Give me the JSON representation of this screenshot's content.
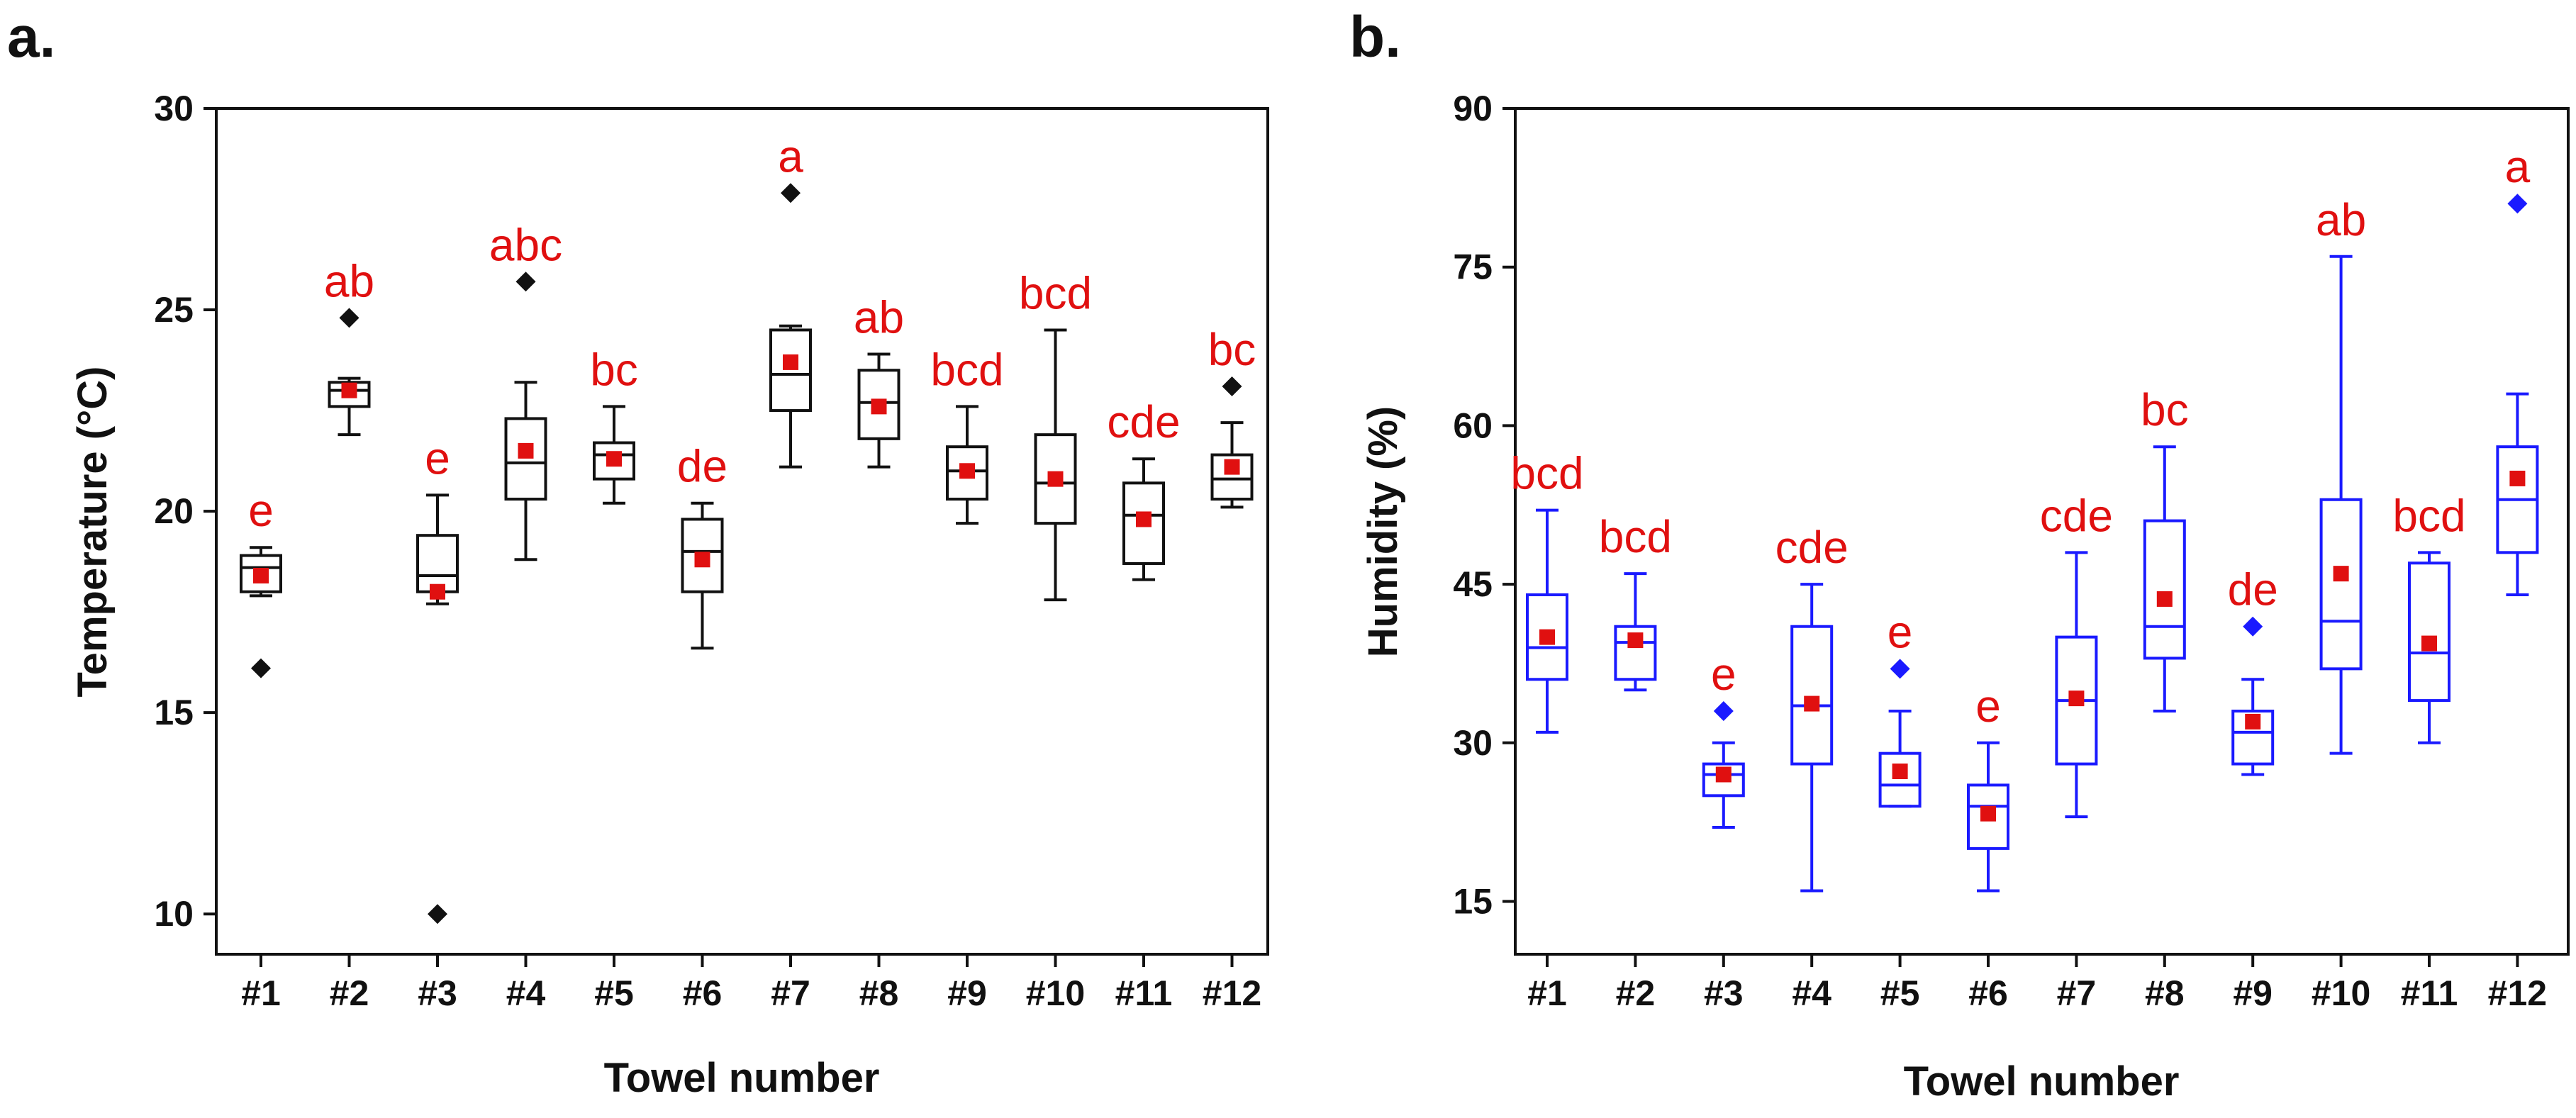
{
  "chart_data": [
    {
      "panel": "a.",
      "type": "box",
      "xlabel": "Towel number",
      "ylabel": "Temperature (°C)",
      "ylim": [
        9,
        30
      ],
      "yticks": [
        "10",
        "15",
        "20",
        "25",
        "30"
      ],
      "color": "#111111",
      "mean_color": "#e01010",
      "categories": [
        "#1",
        "#2",
        "#3",
        "#4",
        "#5",
        "#6",
        "#7",
        "#8",
        "#9",
        "#10",
        "#11",
        "#12"
      ],
      "boxes": [
        {
          "q1": 18.0,
          "median": 18.6,
          "q3": 18.9,
          "lower": 17.9,
          "upper": 19.1,
          "mean": 18.4,
          "outliers": [
            16.1
          ],
          "sig": "e"
        },
        {
          "q1": 22.6,
          "median": 23.0,
          "q3": 23.2,
          "lower": 21.9,
          "upper": 23.3,
          "mean": 23.0,
          "outliers": [
            24.8
          ],
          "sig": "ab"
        },
        {
          "q1": 18.0,
          "median": 18.4,
          "q3": 19.4,
          "lower": 17.7,
          "upper": 20.4,
          "mean": 18.0,
          "outliers": [
            10.0
          ],
          "sig": "e"
        },
        {
          "q1": 20.3,
          "median": 21.2,
          "q3": 22.3,
          "lower": 18.8,
          "upper": 23.2,
          "mean": 21.5,
          "outliers": [
            25.7
          ],
          "sig": "abc"
        },
        {
          "q1": 20.8,
          "median": 21.4,
          "q3": 21.7,
          "lower": 20.2,
          "upper": 22.6,
          "mean": 21.3,
          "outliers": [],
          "sig": "bc"
        },
        {
          "q1": 18.0,
          "median": 19.0,
          "q3": 19.8,
          "lower": 16.6,
          "upper": 20.2,
          "mean": 18.8,
          "outliers": [],
          "sig": "de"
        },
        {
          "q1": 22.5,
          "median": 23.4,
          "q3": 24.5,
          "lower": 21.1,
          "upper": 24.6,
          "mean": 23.7,
          "outliers": [
            27.9
          ],
          "sig": "a"
        },
        {
          "q1": 21.8,
          "median": 22.7,
          "q3": 23.5,
          "lower": 21.1,
          "upper": 23.9,
          "mean": 22.6,
          "outliers": [],
          "sig": "ab"
        },
        {
          "q1": 20.3,
          "median": 21.0,
          "q3": 21.6,
          "lower": 19.7,
          "upper": 22.6,
          "mean": 21.0,
          "outliers": [],
          "sig": "bcd"
        },
        {
          "q1": 19.7,
          "median": 20.7,
          "q3": 21.9,
          "lower": 17.8,
          "upper": 24.5,
          "mean": 20.8,
          "outliers": [],
          "sig": "bcd"
        },
        {
          "q1": 18.7,
          "median": 19.9,
          "q3": 20.7,
          "lower": 18.3,
          "upper": 21.3,
          "mean": 19.8,
          "outliers": [],
          "sig": "cde"
        },
        {
          "q1": 20.3,
          "median": 20.8,
          "q3": 21.4,
          "lower": 20.1,
          "upper": 22.2,
          "mean": 21.1,
          "outliers": [
            23.1
          ],
          "sig": "bc"
        }
      ]
    },
    {
      "panel": "b.",
      "type": "box",
      "xlabel": "Towel number",
      "ylabel": "Humidity (%)",
      "ylim": [
        10,
        90
      ],
      "yticks": [
        "15",
        "30",
        "45",
        "60",
        "75",
        "90"
      ],
      "color": "#1a1aff",
      "mean_color": "#e01010",
      "categories": [
        "#1",
        "#2",
        "#3",
        "#4",
        "#5",
        "#6",
        "#7",
        "#8",
        "#9",
        "#10",
        "#11",
        "#12"
      ],
      "boxes": [
        {
          "q1": 36,
          "median": 39,
          "q3": 44,
          "lower": 31,
          "upper": 52,
          "mean": 40,
          "outliers": [],
          "sig": "bcd"
        },
        {
          "q1": 36,
          "median": 39.5,
          "q3": 41,
          "lower": 35,
          "upper": 46,
          "mean": 39.7,
          "outliers": [],
          "sig": "bcd"
        },
        {
          "q1": 25,
          "median": 27,
          "q3": 28,
          "lower": 22,
          "upper": 30,
          "mean": 27,
          "outliers": [
            33
          ],
          "sig": "e"
        },
        {
          "q1": 28,
          "median": 33.5,
          "q3": 41,
          "lower": 16,
          "upper": 45,
          "mean": 33.7,
          "outliers": [],
          "sig": "cde"
        },
        {
          "q1": 24,
          "median": 26,
          "q3": 29,
          "lower": 24,
          "upper": 33,
          "mean": 27.3,
          "outliers": [
            37
          ],
          "sig": "e"
        },
        {
          "q1": 20,
          "median": 24,
          "q3": 26,
          "lower": 16,
          "upper": 30,
          "mean": 23.3,
          "outliers": [],
          "sig": "e"
        },
        {
          "q1": 28,
          "median": 34,
          "q3": 40,
          "lower": 23,
          "upper": 48,
          "mean": 34.2,
          "outliers": [],
          "sig": "cde"
        },
        {
          "q1": 38,
          "median": 41,
          "q3": 51,
          "lower": 33,
          "upper": 58,
          "mean": 43.6,
          "outliers": [],
          "sig": "bc"
        },
        {
          "q1": 28,
          "median": 31,
          "q3": 33,
          "lower": 27,
          "upper": 36,
          "mean": 32,
          "outliers": [
            41
          ],
          "sig": "de"
        },
        {
          "q1": 37,
          "median": 41.5,
          "q3": 53,
          "lower": 29,
          "upper": 76,
          "mean": 46,
          "outliers": [],
          "sig": "ab"
        },
        {
          "q1": 34,
          "median": 38.5,
          "q3": 47,
          "lower": 30,
          "upper": 48,
          "mean": 39.4,
          "outliers": [],
          "sig": "bcd"
        },
        {
          "q1": 48,
          "median": 53,
          "q3": 58,
          "lower": 44,
          "upper": 63,
          "mean": 55,
          "outliers": [
            81
          ],
          "sig": "a"
        }
      ]
    }
  ]
}
